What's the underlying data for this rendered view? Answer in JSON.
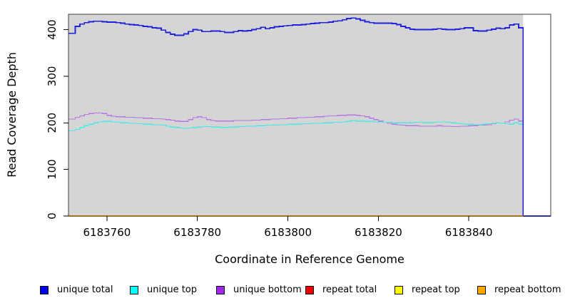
{
  "chart_data": {
    "type": "line",
    "subtype": "step-coverage",
    "title": "",
    "xlabel": "Coordinate in Reference Genome",
    "ylabel": "Read Coverage Depth",
    "x_ticks": [
      6183760,
      6183780,
      6183800,
      6183820,
      6183840
    ],
    "y_ticks": [
      0,
      100,
      200,
      300,
      400
    ],
    "xlim": [
      6183751.5,
      6183858.1
    ],
    "ylim": [
      0,
      433
    ],
    "x_start": 6183752,
    "x_end": 6183852,
    "x_step": 1,
    "plot_background": "#d5d5d5",
    "frame_color": "#3f3f3f",
    "tick_color": "#000000",
    "grid": false,
    "legend_position": "bottom",
    "series": [
      {
        "name": "unique total",
        "legend_color": "#0000EE",
        "line_color": "#2121DC",
        "line_width": 1.8,
        "tail_to_zero": true,
        "values": [
          392,
          407,
          412,
          415,
          417,
          418,
          418,
          417,
          416,
          416,
          415,
          414,
          412,
          411,
          410,
          409,
          407,
          406,
          404,
          403,
          399,
          394,
          390,
          388,
          388,
          391,
          396,
          400,
          399,
          396,
          396,
          397,
          397,
          396,
          394,
          394,
          396,
          398,
          397,
          398,
          400,
          402,
          405,
          402,
          404,
          406,
          407,
          408,
          409,
          410,
          410,
          411,
          412,
          413,
          414,
          415,
          415,
          416,
          418,
          419,
          421,
          424,
          425,
          423,
          420,
          417,
          415,
          414,
          414,
          414,
          414,
          413,
          411,
          407,
          404,
          401,
          400,
          400,
          400,
          400,
          401,
          402,
          401,
          400,
          400,
          401,
          402,
          404,
          404,
          398,
          397,
          397,
          399,
          401,
          403,
          402,
          404,
          410,
          412,
          404
        ]
      },
      {
        "name": "unique top",
        "legend_color": "#00FFFF",
        "line_color": "#49E8E8",
        "line_width": 1.2,
        "values": [
          183,
          186,
          190,
          194,
          197,
          200,
          202,
          203,
          203,
          202,
          201,
          200,
          200,
          199,
          199,
          198,
          197,
          197,
          196,
          196,
          195,
          193,
          191,
          190,
          189,
          188,
          189,
          190,
          191,
          192,
          192,
          191,
          191,
          190,
          190,
          191,
          191,
          192,
          192,
          193,
          193,
          194,
          194,
          195,
          195,
          195,
          196,
          196,
          197,
          197,
          197,
          198,
          198,
          199,
          199,
          199,
          200,
          200,
          201,
          201,
          202,
          203,
          205,
          204,
          204,
          203,
          203,
          202,
          202,
          201,
          201,
          200,
          200,
          200,
          200,
          200,
          201,
          201,
          200,
          200,
          201,
          202,
          202,
          201,
          200,
          199,
          198,
          197,
          197,
          196,
          196,
          197,
          198,
          199,
          200,
          199,
          198,
          197,
          200,
          197
        ]
      },
      {
        "name": "unique bottom",
        "legend_color": "#A028E8",
        "line_color": "#B378E4",
        "line_width": 1.2,
        "values": [
          208,
          212,
          215,
          218,
          220,
          221,
          221,
          220,
          216,
          214,
          213,
          213,
          212,
          212,
          211,
          211,
          210,
          210,
          209,
          209,
          208,
          207,
          206,
          204,
          203,
          203,
          207,
          211,
          213,
          211,
          207,
          205,
          204,
          204,
          204,
          204,
          205,
          205,
          205,
          205,
          206,
          206,
          207,
          207,
          208,
          208,
          209,
          209,
          210,
          210,
          211,
          211,
          212,
          212,
          213,
          213,
          214,
          215,
          215,
          216,
          216,
          217,
          217,
          216,
          215,
          213,
          210,
          207,
          204,
          201,
          199,
          197,
          196,
          195,
          194,
          194,
          194,
          193,
          193,
          193,
          193,
          194,
          193,
          193,
          192,
          192,
          193,
          193,
          194,
          194,
          195,
          195,
          196,
          198,
          200,
          199,
          202,
          206,
          208,
          204
        ]
      },
      {
        "name": "repeat total",
        "legend_color": "#EE0000",
        "line_color": "#EE0000",
        "line_width": 1.2,
        "constant": 0
      },
      {
        "name": "repeat top",
        "legend_color": "#FFFF00",
        "line_color": "#FFFF00",
        "line_width": 1.2,
        "constant": 0
      },
      {
        "name": "repeat bottom",
        "legend_color": "#FFA500",
        "line_color": "#FFA500",
        "line_width": 1.8,
        "constant": 0
      }
    ]
  }
}
